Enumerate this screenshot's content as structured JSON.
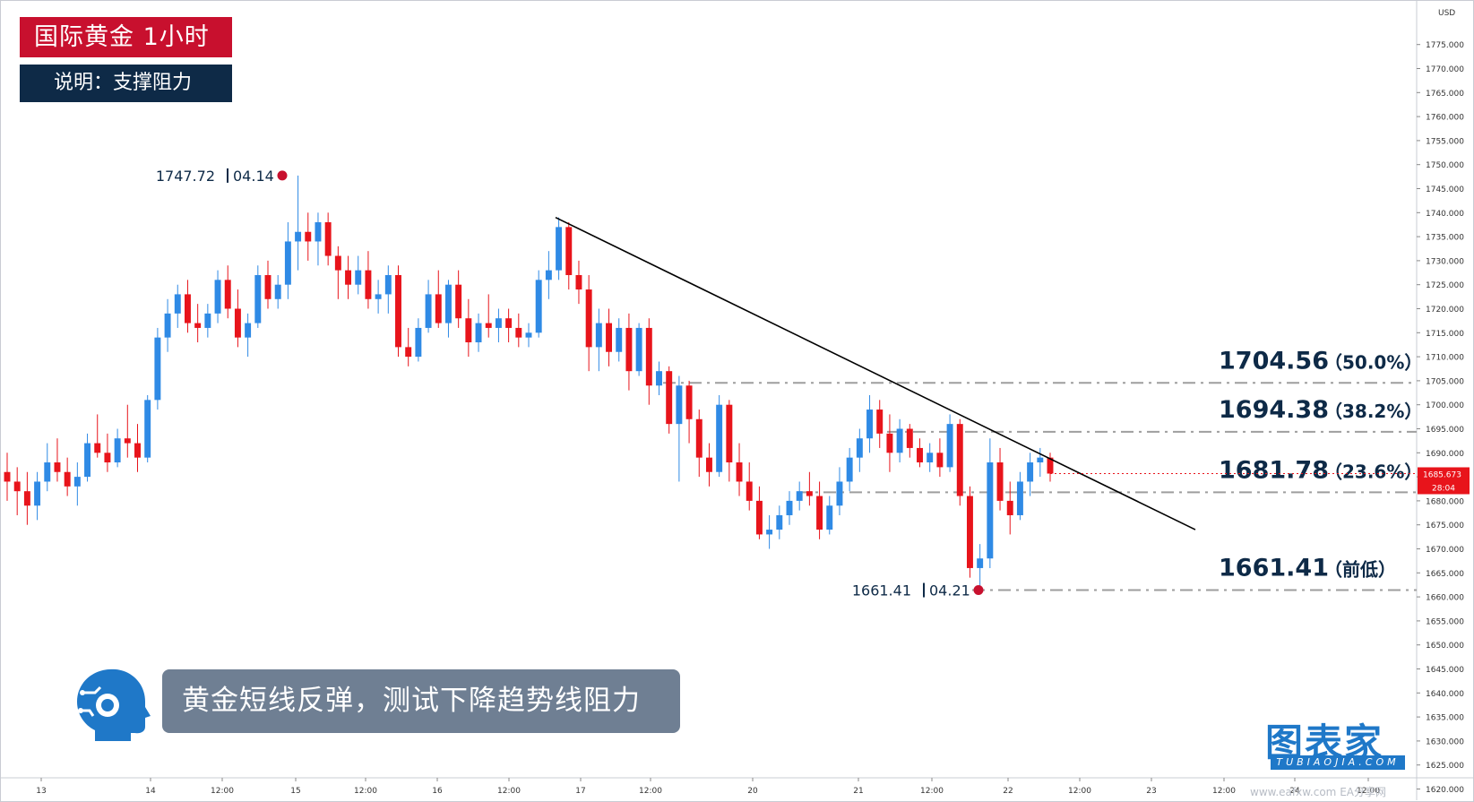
{
  "header": {
    "title": "国际黄金  1小时",
    "subtitle": "说明：支撑阻力"
  },
  "caption": "黄金短线反弹，测试下降趋势线阻力",
  "watermark": {
    "main": "图表家",
    "sub": "TUBIAOJIA.COM",
    "url": "www.eafxw.com EA分享网"
  },
  "colors": {
    "up": "#2f8ae5",
    "down": "#e8141b",
    "title_bg": "#c8102e",
    "subtitle_bg": "#0e2a47",
    "caption_bg": "#6f7f93",
    "level_line": "#9e9e9e",
    "trendline": "#000000",
    "current_price_bg": "#e8141b"
  },
  "chart_data": {
    "type": "candlestick",
    "instrument": "国际黄金",
    "timeframe": "1小时",
    "currency_label": "USD",
    "ylim": [
      1617.5,
      1780
    ],
    "y_ticks": [
      "1775.000",
      "1770.000",
      "1765.000",
      "1760.000",
      "1755.000",
      "1750.000",
      "1745.000",
      "1740.000",
      "1735.000",
      "1730.000",
      "1725.000",
      "1720.000",
      "1715.000",
      "1710.000",
      "1705.000",
      "1700.000",
      "1695.000",
      "1690.000",
      "1685.000",
      "1680.000",
      "1675.000",
      "1670.000",
      "1665.000",
      "1660.000",
      "1655.000",
      "1650.000",
      "1645.000",
      "1640.000",
      "1635.000",
      "1630.000",
      "1625.000",
      "1620.000"
    ],
    "x_ticks": [
      "13",
      "14",
      "12:00",
      "15",
      "12:00",
      "16",
      "12:00",
      "17",
      "12:00",
      "20",
      "21",
      "12:00",
      "22",
      "12:00",
      "23",
      "12:00",
      "24",
      "12:00"
    ],
    "current_price": {
      "price": "1685.673",
      "countdown": "28:04"
    },
    "levels": [
      {
        "value": "1704.56",
        "label": "（50.0%）",
        "price": 1704.56
      },
      {
        "value": "1694.38",
        "label": "（38.2%）",
        "price": 1694.38
      },
      {
        "value": "1681.78",
        "label": "（23.6%）",
        "price": 1681.78
      },
      {
        "value": "1661.41",
        "label": "（前低）",
        "price": 1661.41
      }
    ],
    "annotations": [
      {
        "price_text": "1747.72",
        "date_text": "04.14",
        "price": 1747.72
      },
      {
        "price_text": "1661.41",
        "date_text": "04.21",
        "price": 1661.41
      }
    ],
    "trendline": {
      "start_price": 1739,
      "end_price": 1674
    },
    "candles": [
      {
        "o": 1686,
        "h": 1690,
        "l": 1680,
        "c": 1684
      },
      {
        "o": 1684,
        "h": 1687,
        "l": 1677,
        "c": 1682
      },
      {
        "o": 1682,
        "h": 1686,
        "l": 1675,
        "c": 1679
      },
      {
        "o": 1679,
        "h": 1686,
        "l": 1676,
        "c": 1684
      },
      {
        "o": 1684,
        "h": 1692,
        "l": 1682,
        "c": 1688
      },
      {
        "o": 1688,
        "h": 1693,
        "l": 1684,
        "c": 1686
      },
      {
        "o": 1686,
        "h": 1689,
        "l": 1681,
        "c": 1683
      },
      {
        "o": 1683,
        "h": 1688,
        "l": 1679,
        "c": 1685
      },
      {
        "o": 1685,
        "h": 1694,
        "l": 1684,
        "c": 1692
      },
      {
        "o": 1692,
        "h": 1698,
        "l": 1689,
        "c": 1690
      },
      {
        "o": 1690,
        "h": 1694,
        "l": 1686,
        "c": 1688
      },
      {
        "o": 1688,
        "h": 1695,
        "l": 1687,
        "c": 1693
      },
      {
        "o": 1693,
        "h": 1700,
        "l": 1689,
        "c": 1692
      },
      {
        "o": 1692,
        "h": 1696,
        "l": 1686,
        "c": 1689
      },
      {
        "o": 1689,
        "h": 1702,
        "l": 1688,
        "c": 1701
      },
      {
        "o": 1701,
        "h": 1716,
        "l": 1699,
        "c": 1714
      },
      {
        "o": 1714,
        "h": 1722,
        "l": 1711,
        "c": 1719
      },
      {
        "o": 1719,
        "h": 1725,
        "l": 1716,
        "c": 1723
      },
      {
        "o": 1723,
        "h": 1726,
        "l": 1715,
        "c": 1717
      },
      {
        "o": 1717,
        "h": 1721,
        "l": 1713,
        "c": 1716
      },
      {
        "o": 1716,
        "h": 1721,
        "l": 1714,
        "c": 1719
      },
      {
        "o": 1719,
        "h": 1728,
        "l": 1717,
        "c": 1726
      },
      {
        "o": 1726,
        "h": 1729,
        "l": 1718,
        "c": 1720
      },
      {
        "o": 1720,
        "h": 1724,
        "l": 1712,
        "c": 1714
      },
      {
        "o": 1714,
        "h": 1719,
        "l": 1710,
        "c": 1717
      },
      {
        "o": 1717,
        "h": 1729,
        "l": 1716,
        "c": 1727
      },
      {
        "o": 1727,
        "h": 1730,
        "l": 1720,
        "c": 1722
      },
      {
        "o": 1722,
        "h": 1727,
        "l": 1720,
        "c": 1725
      },
      {
        "o": 1725,
        "h": 1738,
        "l": 1722,
        "c": 1734
      },
      {
        "o": 1734,
        "h": 1747.72,
        "l": 1728,
        "c": 1736
      },
      {
        "o": 1736,
        "h": 1740,
        "l": 1730,
        "c": 1734
      },
      {
        "o": 1734,
        "h": 1740,
        "l": 1729,
        "c": 1738
      },
      {
        "o": 1738,
        "h": 1740,
        "l": 1729,
        "c": 1731
      },
      {
        "o": 1731,
        "h": 1733,
        "l": 1722,
        "c": 1728
      },
      {
        "o": 1728,
        "h": 1731,
        "l": 1722,
        "c": 1725
      },
      {
        "o": 1725,
        "h": 1731,
        "l": 1723,
        "c": 1728
      },
      {
        "o": 1728,
        "h": 1732,
        "l": 1720,
        "c": 1722
      },
      {
        "o": 1722,
        "h": 1726,
        "l": 1719,
        "c": 1723
      },
      {
        "o": 1723,
        "h": 1729,
        "l": 1719,
        "c": 1727
      },
      {
        "o": 1727,
        "h": 1729,
        "l": 1710,
        "c": 1712
      },
      {
        "o": 1712,
        "h": 1716,
        "l": 1708,
        "c": 1710
      },
      {
        "o": 1710,
        "h": 1718,
        "l": 1709,
        "c": 1716
      },
      {
        "o": 1716,
        "h": 1726,
        "l": 1715,
        "c": 1723
      },
      {
        "o": 1723,
        "h": 1728,
        "l": 1716,
        "c": 1717
      },
      {
        "o": 1717,
        "h": 1726,
        "l": 1714,
        "c": 1725
      },
      {
        "o": 1725,
        "h": 1728,
        "l": 1716,
        "c": 1718
      },
      {
        "o": 1718,
        "h": 1722,
        "l": 1710,
        "c": 1713
      },
      {
        "o": 1713,
        "h": 1719,
        "l": 1711,
        "c": 1717
      },
      {
        "o": 1717,
        "h": 1723,
        "l": 1714,
        "c": 1716
      },
      {
        "o": 1716,
        "h": 1720,
        "l": 1713,
        "c": 1718
      },
      {
        "o": 1718,
        "h": 1720,
        "l": 1713,
        "c": 1716
      },
      {
        "o": 1716,
        "h": 1719,
        "l": 1712,
        "c": 1714
      },
      {
        "o": 1714,
        "h": 1717,
        "l": 1712,
        "c": 1715
      },
      {
        "o": 1715,
        "h": 1728,
        "l": 1714,
        "c": 1726
      },
      {
        "o": 1726,
        "h": 1732,
        "l": 1722,
        "c": 1728
      },
      {
        "o": 1728,
        "h": 1739,
        "l": 1726,
        "c": 1737
      },
      {
        "o": 1737,
        "h": 1738,
        "l": 1724,
        "c": 1727
      },
      {
        "o": 1727,
        "h": 1730,
        "l": 1721,
        "c": 1724
      },
      {
        "o": 1724,
        "h": 1727,
        "l": 1707,
        "c": 1712
      },
      {
        "o": 1712,
        "h": 1720,
        "l": 1707,
        "c": 1717
      },
      {
        "o": 1717,
        "h": 1720,
        "l": 1708,
        "c": 1711
      },
      {
        "o": 1711,
        "h": 1718,
        "l": 1709,
        "c": 1716
      },
      {
        "o": 1716,
        "h": 1719,
        "l": 1703,
        "c": 1707
      },
      {
        "o": 1707,
        "h": 1717,
        "l": 1706,
        "c": 1716
      },
      {
        "o": 1716,
        "h": 1718,
        "l": 1700,
        "c": 1704
      },
      {
        "o": 1704,
        "h": 1709,
        "l": 1702,
        "c": 1707
      },
      {
        "o": 1707,
        "h": 1708,
        "l": 1694,
        "c": 1696
      },
      {
        "o": 1696,
        "h": 1706,
        "l": 1684,
        "c": 1704
      },
      {
        "o": 1704,
        "h": 1705,
        "l": 1692,
        "c": 1697
      },
      {
        "o": 1697,
        "h": 1699,
        "l": 1685,
        "c": 1689
      },
      {
        "o": 1689,
        "h": 1692,
        "l": 1683,
        "c": 1686
      },
      {
        "o": 1686,
        "h": 1702,
        "l": 1685,
        "c": 1700
      },
      {
        "o": 1700,
        "h": 1701,
        "l": 1684,
        "c": 1688
      },
      {
        "o": 1688,
        "h": 1692,
        "l": 1681,
        "c": 1684
      },
      {
        "o": 1684,
        "h": 1688,
        "l": 1678,
        "c": 1680
      },
      {
        "o": 1680,
        "h": 1683,
        "l": 1672,
        "c": 1673
      },
      {
        "o": 1673,
        "h": 1677,
        "l": 1670,
        "c": 1674
      },
      {
        "o": 1674,
        "h": 1679,
        "l": 1672,
        "c": 1677
      },
      {
        "o": 1677,
        "h": 1682,
        "l": 1675,
        "c": 1680
      },
      {
        "o": 1680,
        "h": 1684,
        "l": 1678,
        "c": 1682
      },
      {
        "o": 1682,
        "h": 1686,
        "l": 1679,
        "c": 1681
      },
      {
        "o": 1681,
        "h": 1684,
        "l": 1672,
        "c": 1674
      },
      {
        "o": 1674,
        "h": 1681,
        "l": 1673,
        "c": 1679
      },
      {
        "o": 1679,
        "h": 1687,
        "l": 1677,
        "c": 1684
      },
      {
        "o": 1684,
        "h": 1691,
        "l": 1682,
        "c": 1689
      },
      {
        "o": 1689,
        "h": 1695,
        "l": 1686,
        "c": 1693
      },
      {
        "o": 1693,
        "h": 1702,
        "l": 1690,
        "c": 1699
      },
      {
        "o": 1699,
        "h": 1701,
        "l": 1691,
        "c": 1694
      },
      {
        "o": 1694,
        "h": 1698,
        "l": 1686,
        "c": 1690
      },
      {
        "o": 1690,
        "h": 1697,
        "l": 1688,
        "c": 1695
      },
      {
        "o": 1695,
        "h": 1696,
        "l": 1689,
        "c": 1691
      },
      {
        "o": 1691,
        "h": 1693,
        "l": 1687,
        "c": 1688
      },
      {
        "o": 1688,
        "h": 1692,
        "l": 1686,
        "c": 1690
      },
      {
        "o": 1690,
        "h": 1693,
        "l": 1685,
        "c": 1687
      },
      {
        "o": 1687,
        "h": 1698,
        "l": 1686,
        "c": 1696
      },
      {
        "o": 1696,
        "h": 1697,
        "l": 1679,
        "c": 1681
      },
      {
        "o": 1681,
        "h": 1683,
        "l": 1664,
        "c": 1666
      },
      {
        "o": 1666,
        "h": 1671,
        "l": 1661.41,
        "c": 1668
      },
      {
        "o": 1668,
        "h": 1693,
        "l": 1666,
        "c": 1688
      },
      {
        "o": 1688,
        "h": 1691,
        "l": 1678,
        "c": 1680
      },
      {
        "o": 1680,
        "h": 1684,
        "l": 1673,
        "c": 1677
      },
      {
        "o": 1677,
        "h": 1686,
        "l": 1676,
        "c": 1684
      },
      {
        "o": 1684,
        "h": 1690,
        "l": 1681,
        "c": 1688
      },
      {
        "o": 1688,
        "h": 1691,
        "l": 1685,
        "c": 1689
      },
      {
        "o": 1689,
        "h": 1690,
        "l": 1684,
        "c": 1685.673
      }
    ]
  }
}
